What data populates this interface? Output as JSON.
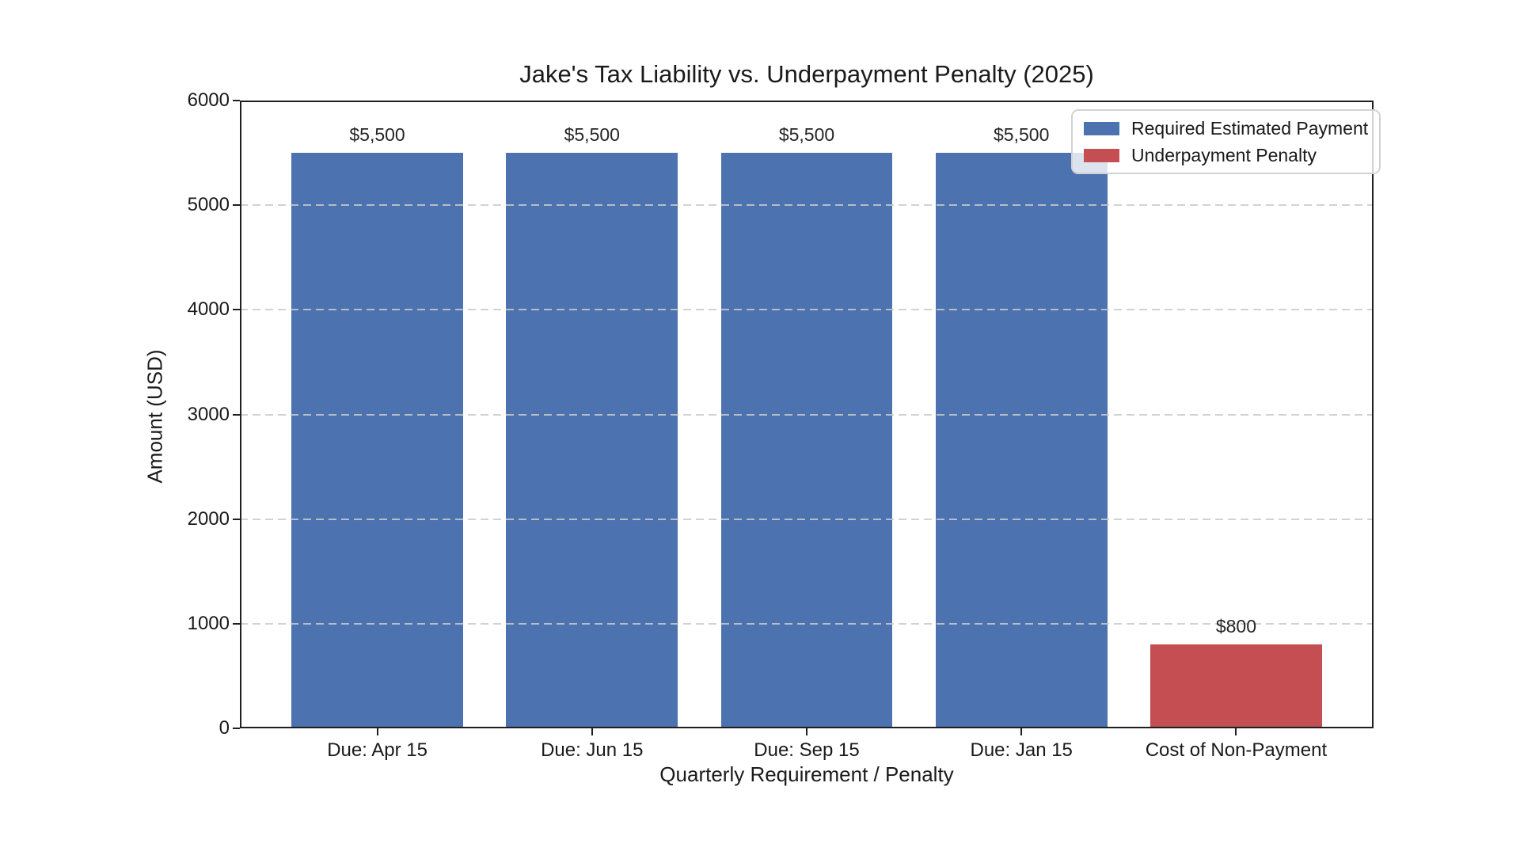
{
  "figure": {
    "background": "#ffffff"
  },
  "chart_data": {
    "type": "bar",
    "title": "Jake's Tax Liability vs. Underpayment Penalty (2025)",
    "xlabel": "Quarterly Requirement / Penalty",
    "ylabel": "Amount (USD)",
    "categories": [
      "Due: Apr 15",
      "Due: Jun 15",
      "Due: Sep 15",
      "Due: Jan 15",
      "Cost of Non-Payment"
    ],
    "values": [
      5500,
      5500,
      5500,
      5500,
      800
    ],
    "bar_labels": [
      "$5,500",
      "$5,500",
      "$5,500",
      "$5,500",
      "$800"
    ],
    "series": [
      {
        "name": "Required Estimated Payment",
        "color": "#4c72b0",
        "indices": [
          0,
          1,
          2,
          3
        ]
      },
      {
        "name": "Underpayment Penalty",
        "color": "#c44e52",
        "indices": [
          4
        ]
      }
    ],
    "ylim": [
      0,
      6000
    ],
    "yticks": [
      0,
      1000,
      2000,
      3000,
      4000,
      5000,
      6000
    ],
    "grid": {
      "axis": "y",
      "style": "dashed",
      "color": "#cacaca",
      "drawn_above_bars": true
    },
    "legend": {
      "position": "upper right"
    },
    "axis_color": "#1f1f1f",
    "text_color": "#1a1a1a"
  }
}
